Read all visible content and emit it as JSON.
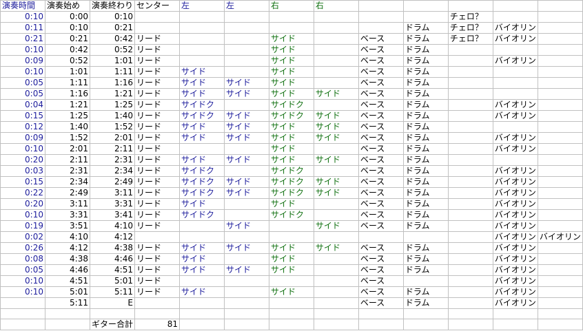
{
  "header": [
    "演奏時間",
    "演奏始め",
    "演奏終わり",
    "センター",
    "左",
    "左",
    "右",
    "右",
    "",
    "",
    "",
    "",
    ""
  ],
  "rows": [
    [
      "0:10",
      "0:00",
      "0:10",
      "",
      "",
      "",
      "",
      "",
      "",
      "",
      "チェロ？",
      "",
      ""
    ],
    [
      "0:11",
      "0:10",
      "0:21",
      "",
      "",
      "",
      "",
      "",
      "",
      "ドラム",
      "チェロ？",
      "バイオリン",
      ""
    ],
    [
      "0:21",
      "0:21",
      "0:42",
      "リード",
      "",
      "",
      "サイド",
      "",
      "ベース",
      "ドラム",
      "チェロ？",
      "バイオリン",
      ""
    ],
    [
      "0:10",
      "0:42",
      "0:52",
      "リード",
      "",
      "",
      "サイド",
      "",
      "ベース",
      "ドラム",
      "",
      "",
      ""
    ],
    [
      "0:09",
      "0:52",
      "1:01",
      "リード",
      "",
      "",
      "サイド",
      "",
      "ベース",
      "ドラム",
      "",
      "バイオリン",
      ""
    ],
    [
      "0:10",
      "1:01",
      "1:11",
      "リード",
      "サイド",
      "",
      "サイド",
      "",
      "ベース",
      "ドラム",
      "",
      "",
      ""
    ],
    [
      "0:05",
      "1:11",
      "1:16",
      "リード",
      "サイド",
      "サイド",
      "サイド",
      "",
      "ベース",
      "ドラム",
      "",
      "",
      ""
    ],
    [
      "0:05",
      "1:16",
      "1:21",
      "リード",
      "サイド",
      "サイド",
      "サイド",
      "サイド",
      "ベース",
      "ドラム",
      "",
      "",
      ""
    ],
    [
      "0:04",
      "1:21",
      "1:25",
      "リード",
      "サイドク",
      "",
      "サイドク",
      "",
      "ベース",
      "ドラム",
      "",
      "バイオリン",
      ""
    ],
    [
      "0:15",
      "1:25",
      "1:40",
      "リード",
      "サイドク",
      "サイド",
      "サイドク",
      "サイド",
      "ベース",
      "ドラム",
      "",
      "バイオリン",
      ""
    ],
    [
      "0:12",
      "1:40",
      "1:52",
      "リード",
      "サイド",
      "サイド",
      "サイド",
      "サイド",
      "ベース",
      "ドラム",
      "",
      "",
      ""
    ],
    [
      "0:09",
      "1:52",
      "2:01",
      "リード",
      "サイド",
      "サイド",
      "サイド",
      "サイド",
      "ベース",
      "ドラム",
      "",
      "バイオリン",
      ""
    ],
    [
      "0:10",
      "2:01",
      "2:11",
      "リード",
      "",
      "",
      "サイド",
      "",
      "ベース",
      "ドラム",
      "",
      "バイオリン",
      ""
    ],
    [
      "0:20",
      "2:11",
      "2:31",
      "リード",
      "サイド",
      "サイド",
      "サイド",
      "サイド",
      "ベース",
      "ドラム",
      "",
      "",
      ""
    ],
    [
      "0:03",
      "2:31",
      "2:34",
      "リード",
      "サイドク",
      "",
      "サイドク",
      "",
      "ベース",
      "ドラム",
      "",
      "バイオリン",
      ""
    ],
    [
      "0:15",
      "2:34",
      "2:49",
      "リード",
      "サイドク",
      "サイド",
      "サイドク",
      "サイド",
      "ベース",
      "ドラム",
      "",
      "バイオリン",
      ""
    ],
    [
      "0:22",
      "2:49",
      "3:11",
      "リード",
      "サイドク",
      "サイド",
      "サイドク",
      "サイド",
      "ベース",
      "ドラム",
      "",
      "バイオリン",
      ""
    ],
    [
      "0:20",
      "3:11",
      "3:31",
      "リード",
      "サイド",
      "",
      "サイド",
      "",
      "ベース",
      "ドラム",
      "",
      "バイオリン",
      ""
    ],
    [
      "0:10",
      "3:31",
      "3:41",
      "リード",
      "サイドク",
      "",
      "サイドク",
      "",
      "ベース",
      "ドラム",
      "",
      "バイオリン",
      ""
    ],
    [
      "0:19",
      "3:51",
      "4:10",
      "リード",
      "",
      "サイド",
      "",
      "サイド",
      "ベース",
      "ドラム",
      "",
      "バイオリン",
      ""
    ],
    [
      "0:02",
      "4:10",
      "4:12",
      "",
      "",
      "",
      "",
      "",
      "",
      "",
      "",
      "バイオリン",
      "バイオリン"
    ],
    [
      "0:26",
      "4:12",
      "4:38",
      "リード",
      "サイド",
      "サイド",
      "サイド",
      "サイド",
      "ベース",
      "ドラム",
      "",
      "バイオリン",
      ""
    ],
    [
      "0:08",
      "4:38",
      "4:46",
      "リード",
      "サイド",
      "",
      "サイド",
      "",
      "ベース",
      "ドラム",
      "",
      "バイオリン",
      ""
    ],
    [
      "0:05",
      "4:46",
      "4:51",
      "リード",
      "サイド",
      "サイド",
      "サイド",
      "",
      "ベース",
      "ドラム",
      "",
      "バイオリン",
      ""
    ],
    [
      "0:10",
      "4:51",
      "5:01",
      "リード",
      "",
      "",
      "",
      "",
      "ベース",
      "",
      "",
      "バイオリン",
      ""
    ],
    [
      "0:10",
      "5:01",
      "5:11",
      "リード",
      "サイド",
      "",
      "サイド",
      "",
      "ベース",
      "ドラム",
      "",
      "バイオリン",
      ""
    ],
    [
      "",
      "5:11",
      "E",
      "",
      "",
      "",
      "",
      "",
      "ベース",
      "ドラム",
      "",
      "バイオリン",
      ""
    ],
    [
      "",
      "",
      "",
      "",
      "",
      "",
      "",
      "",
      "",
      "",
      "",
      "",
      ""
    ],
    [
      "",
      "",
      "ギター合計",
      "81",
      "",
      "",
      "",
      "",
      "",
      "",
      "",
      "",
      ""
    ]
  ],
  "colors": {
    "duration": "#1c1c9c",
    "left": "#1c1c9c",
    "right": "#107010",
    "grid": "#c0c0c0"
  }
}
